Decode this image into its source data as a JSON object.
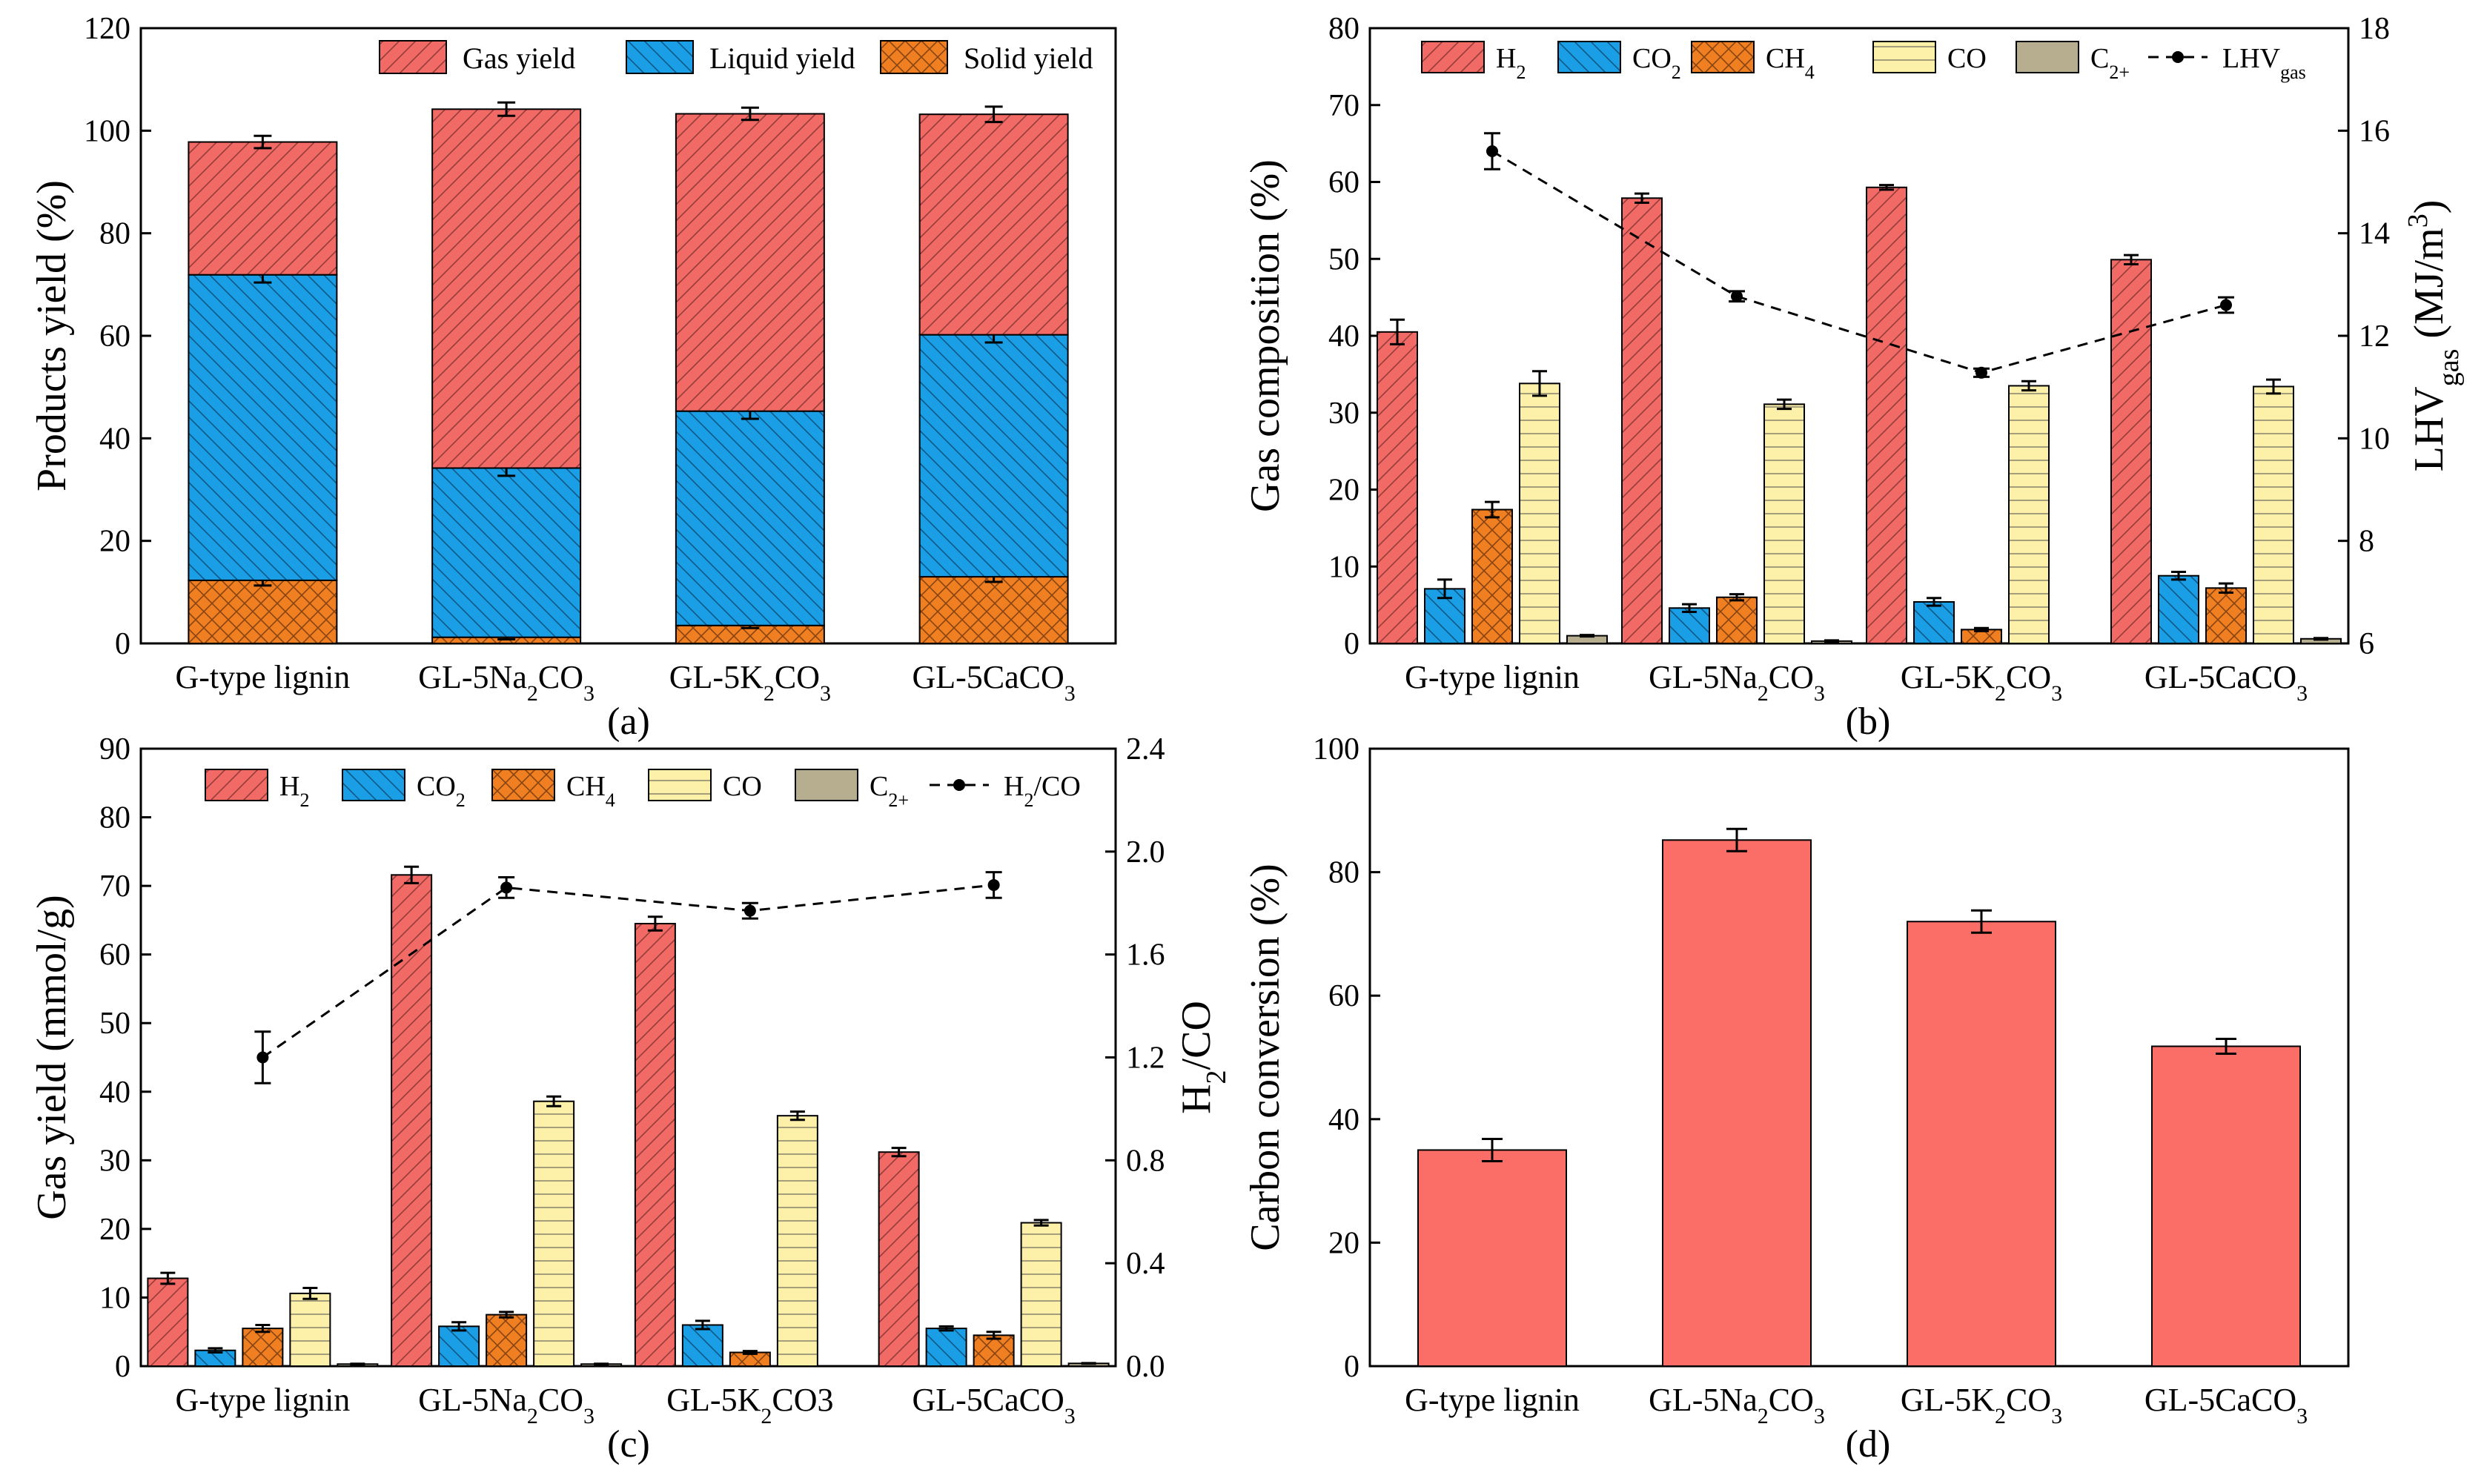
{
  "colors": {
    "gas": "#f26a65",
    "liquid": "#1a9ee6",
    "solid": "#f07f22",
    "h2": "#f26a65",
    "co2": "#1a9ee6",
    "ch4": "#f07f22",
    "co": "#fdf0a9",
    "c2": "#b7ae8f",
    "carbon": "#fb6e68"
  },
  "chart_data": [
    {
      "id": "a",
      "type": "bar",
      "stacked": true,
      "caption": "(a)",
      "ylabel": "Products yield (%)",
      "ylim": [
        0,
        120
      ],
      "yticks": [
        "0",
        "20",
        "40",
        "60",
        "80",
        "100",
        "120"
      ],
      "categories": [
        {
          "base": "G-type lignin",
          "sub": "",
          "tail": ""
        },
        {
          "base": "GL-5Na",
          "sub": "2",
          "tail": "CO",
          "sub2": "3"
        },
        {
          "base": "GL-5K",
          "sub": "2",
          "tail": "CO",
          "sub2": "3"
        },
        {
          "base": "GL-5CaCO",
          "sub": "3",
          "tail": ""
        }
      ],
      "series": [
        {
          "name": "Solid yield",
          "values": [
            12.3,
            1.2,
            3.5,
            13.0
          ],
          "errors": [
            1.0,
            0.4,
            0.5,
            1.0
          ],
          "color": "solid",
          "pattern": "cross"
        },
        {
          "name": "Liquid yield",
          "values": [
            59.6,
            33.0,
            41.8,
            47.2
          ],
          "errors": [
            1.5,
            1.5,
            1.5,
            1.5
          ],
          "color": "liquid",
          "pattern": "back"
        },
        {
          "name": "Gas yield",
          "values": [
            25.9,
            70.0,
            58.0,
            43.0
          ],
          "errors": [
            1.2,
            1.3,
            1.2,
            1.5
          ],
          "color": "gas",
          "pattern": "fwd"
        }
      ],
      "legend_order": [
        "Gas yield",
        "Liquid yield",
        "Solid yield"
      ]
    },
    {
      "id": "b",
      "type": "bar",
      "caption": "(b)",
      "ylabel": "Gas composition (%)",
      "ylim": [
        0,
        80
      ],
      "yticks": [
        "0",
        "10",
        "20",
        "30",
        "40",
        "50",
        "60",
        "70",
        "80"
      ],
      "y2label_base": "LHV",
      "y2label_sub": "gas",
      "y2label_unit": " (MJ/m",
      "y2label_sup": "3",
      "y2label_close": ")",
      "y2lim": [
        6,
        18
      ],
      "y2ticks": [
        "6",
        "8",
        "10",
        "12",
        "14",
        "16",
        "18"
      ],
      "categories": [
        {
          "base": "G-type lignin",
          "sub": "",
          "tail": ""
        },
        {
          "base": "GL-5Na",
          "sub": "2",
          "tail": "CO",
          "sub2": "3"
        },
        {
          "base": "GL-5K",
          "sub": "2",
          "tail": "CO",
          "sub2": "3"
        },
        {
          "base": "GL-5CaCO",
          "sub": "3",
          "tail": ""
        }
      ],
      "series": [
        {
          "name": "H",
          "sub": "2",
          "values": [
            40.5,
            57.9,
            59.3,
            49.9
          ],
          "errors": [
            1.6,
            0.6,
            0.3,
            0.6
          ],
          "color": "h2",
          "pattern": "fwd"
        },
        {
          "name": "CO",
          "sub": "2",
          "values": [
            7.1,
            4.6,
            5.4,
            8.8
          ],
          "errors": [
            1.2,
            0.5,
            0.5,
            0.5
          ],
          "color": "co2",
          "pattern": "back"
        },
        {
          "name": "CH",
          "sub": "4",
          "values": [
            17.4,
            6.0,
            1.8,
            7.2
          ],
          "errors": [
            1.0,
            0.4,
            0.2,
            0.6
          ],
          "color": "ch4",
          "pattern": "cross"
        },
        {
          "name": "CO",
          "sub": "",
          "values": [
            33.8,
            31.1,
            33.5,
            33.4
          ],
          "errors": [
            1.6,
            0.6,
            0.6,
            0.9
          ],
          "color": "co",
          "pattern": "horiz"
        },
        {
          "name": "C",
          "sub": "2+",
          "values": [
            1.0,
            0.3,
            0.0,
            0.6
          ],
          "errors": [
            0.1,
            0.1,
            0.0,
            0.1
          ],
          "color": "c2",
          "pattern": "none"
        }
      ],
      "line": {
        "name": "LHV",
        "sub": "gas",
        "values": [
          15.6,
          12.77,
          11.28,
          12.6
        ],
        "errors": [
          0.35,
          0.1,
          0.08,
          0.15
        ]
      }
    },
    {
      "id": "c",
      "type": "bar",
      "caption": "(c)",
      "ylabel": "Gas yield (mmol/g)",
      "ylim": [
        0,
        90
      ],
      "yticks": [
        "0",
        "10",
        "20",
        "30",
        "40",
        "50",
        "60",
        "70",
        "80",
        "90"
      ],
      "y2label_base": "H",
      "y2label_sub": "2",
      "y2label_unit": "/CO",
      "y2lim": [
        0,
        2.4
      ],
      "y2ticks": [
        "0.0",
        "0.4",
        "0.8",
        "1.2",
        "1.6",
        "2.0",
        "2.4"
      ],
      "categories": [
        {
          "base": "G-type lignin",
          "sub": "",
          "tail": ""
        },
        {
          "base": "GL-5Na",
          "sub": "2",
          "tail": "CO",
          "sub2": "3"
        },
        {
          "base": "GL-5K",
          "sub": "2",
          "tail": "CO3",
          "sub2": ""
        },
        {
          "base": "GL-5CaCO",
          "sub": "3",
          "tail": ""
        }
      ],
      "series": [
        {
          "name": "H",
          "sub": "2",
          "values": [
            12.8,
            71.6,
            64.5,
            31.2
          ],
          "errors": [
            0.8,
            1.2,
            1.0,
            0.6
          ],
          "color": "h2",
          "pattern": "fwd"
        },
        {
          "name": "CO",
          "sub": "2",
          "values": [
            2.3,
            5.8,
            6.0,
            5.5
          ],
          "errors": [
            0.3,
            0.6,
            0.6,
            0.3
          ],
          "color": "co2",
          "pattern": "back"
        },
        {
          "name": "CH",
          "sub": "4",
          "values": [
            5.5,
            7.5,
            2.0,
            4.5
          ],
          "errors": [
            0.5,
            0.4,
            0.2,
            0.5
          ],
          "color": "ch4",
          "pattern": "cross"
        },
        {
          "name": "CO",
          "sub": "",
          "values": [
            10.6,
            38.6,
            36.5,
            20.9
          ],
          "errors": [
            0.8,
            0.7,
            0.6,
            0.4
          ],
          "color": "co",
          "pattern": "horiz"
        },
        {
          "name": "C",
          "sub": "2+",
          "values": [
            0.3,
            0.3,
            0.0,
            0.4
          ],
          "errors": [
            0.05,
            0.05,
            0.0,
            0.05
          ],
          "color": "c2",
          "pattern": "none"
        }
      ],
      "line": {
        "name": "H",
        "sub": "2",
        "tail": "/CO",
        "values": [
          1.2,
          1.86,
          1.77,
          1.87
        ],
        "errors": [
          0.1,
          0.04,
          0.03,
          0.05
        ]
      }
    },
    {
      "id": "d",
      "type": "bar",
      "caption": "(d)",
      "ylabel": "Carbon conversion (%)",
      "ylim": [
        0,
        100
      ],
      "yticks": [
        "0",
        "20",
        "40",
        "60",
        "80",
        "100"
      ],
      "categories": [
        {
          "base": "G-type lignin",
          "sub": "",
          "tail": ""
        },
        {
          "base": "GL-5Na",
          "sub": "2",
          "tail": "CO",
          "sub2": "3"
        },
        {
          "base": "GL-5K",
          "sub": "2",
          "tail": "CO",
          "sub2": "3"
        },
        {
          "base": "GL-5CaCO",
          "sub": "3",
          "tail": ""
        }
      ],
      "series": [
        {
          "name": "Carbon conversion",
          "values": [
            35.0,
            85.2,
            72.0,
            51.8
          ],
          "errors": [
            1.8,
            1.8,
            1.8,
            1.2
          ],
          "color": "carbon",
          "pattern": "none"
        }
      ]
    }
  ]
}
